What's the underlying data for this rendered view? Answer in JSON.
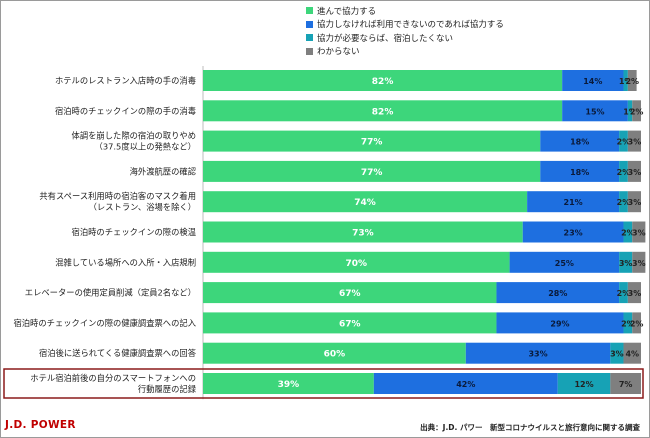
{
  "chart_data": {
    "type": "bar",
    "orientation": "horizontal",
    "stacked": true,
    "percent_suffix": "%",
    "xlim": [
      0,
      100
    ],
    "legend_position": "top",
    "categories": [
      "ホテルのレストラン入店時の手の消毒",
      "宿泊時のチェックインの際の手の消毒",
      "体調を崩した際の宿泊の取りやめ\n（37.5度以上の発熱など）",
      "海外渡航歴の確認",
      "共有スペース利用時の宿泊客のマスク着用\n（レストラン、浴場を除く）",
      "宿泊時のチェックインの際の検温",
      "混雑している場所への入所・入店規制",
      "エレベーターの使用定員削減（定員2名など）",
      "宿泊時のチェックインの際の健康調査票への記入",
      "宿泊後に送られてくる健康調査票への回答",
      "ホテル宿泊前後の自分のスマートフォンへの\n行動履歴の記録"
    ],
    "series": [
      {
        "name": "進んで協力する",
        "color": "#3dd67b",
        "values": [
          82,
          82,
          77,
          77,
          74,
          73,
          70,
          67,
          67,
          60,
          39
        ]
      },
      {
        "name": "協力しなければ利用できないのであれば協力する",
        "color": "#1e6fe0",
        "values": [
          14,
          15,
          18,
          18,
          21,
          23,
          25,
          28,
          29,
          33,
          42
        ]
      },
      {
        "name": "協力が必要ならば、宿泊したくない",
        "color": "#17a2b5",
        "values": [
          1,
          1,
          2,
          2,
          2,
          2,
          3,
          2,
          2,
          3,
          12
        ]
      },
      {
        "name": "わからない",
        "color": "#7f7f7f",
        "values": [
          2,
          2,
          3,
          3,
          3,
          3,
          3,
          3,
          2,
          4,
          7
        ]
      }
    ],
    "highlighted_category": "ホテル宿泊前後の自分のスマートフォンへの\n行動履歴の記録",
    "highlight_color": "#8b1a1a"
  },
  "footer": {
    "logo": "J.D. POWER",
    "source": "出典：J.D. パワー　新型コロナウイルスと旅行意向に関する調査"
  }
}
